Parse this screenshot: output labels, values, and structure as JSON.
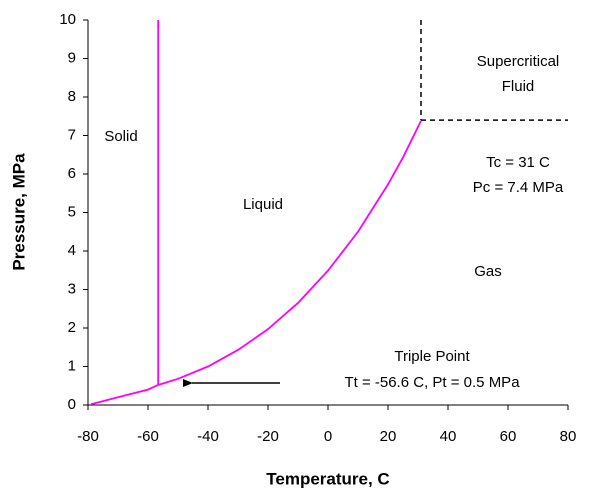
{
  "chart_data": {
    "type": "line",
    "x_label": "Temperature, C",
    "y_label": "Pressure, MPa",
    "xlim": [
      -80,
      80
    ],
    "xticks": [
      -80,
      -60,
      -40,
      -20,
      0,
      20,
      40,
      60,
      80
    ],
    "ylim": [
      0,
      10
    ],
    "yticks": [
      0,
      1,
      2,
      3,
      4,
      5,
      6,
      7,
      8,
      9,
      10
    ],
    "grid": false,
    "series": [
      {
        "color": "#ff00ff",
        "dash": false,
        "x": [
          -56.6,
          -56.6
        ],
        "values": [
          0.52,
          10
        ]
      },
      {
        "color": "#ff00ff",
        "dash": false,
        "x": [
          -79,
          -70,
          -60,
          -56.6,
          -50,
          -40,
          -30,
          -20,
          -10,
          0,
          10,
          20,
          25,
          31
        ],
        "values": [
          0.02,
          0.2,
          0.4,
          0.52,
          0.68,
          1.0,
          1.43,
          1.97,
          2.65,
          3.49,
          4.5,
          5.73,
          6.43,
          7.38
        ]
      },
      {
        "color": "#000000",
        "dash": true,
        "x": [
          31,
          31
        ],
        "values": [
          10,
          7.4
        ]
      },
      {
        "color": "#000000",
        "dash": true,
        "x": [
          31,
          80
        ],
        "values": [
          7.4,
          7.4
        ]
      }
    ],
    "annotations": [
      "Solid",
      "Liquid",
      "Supercritical",
      "Fluid",
      "Tc = 31 C",
      "Pc = 7.4 MPa",
      "Gas",
      "Triple Point",
      "Tt = -56.6 C,  Pt = 0.5 MPa"
    ]
  }
}
